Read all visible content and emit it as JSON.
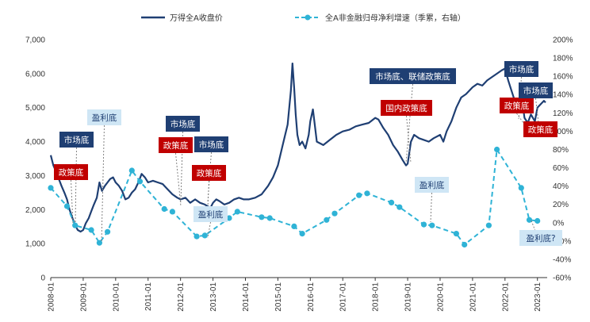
{
  "chart_data": {
    "type": "line",
    "legend": {
      "placement": "top",
      "entries": [
        {
          "label": "万得全A收盘价",
          "style": "solid",
          "color": "#1f3f73"
        },
        {
          "label": "全A非金融归母净利增速（季累，右轴）",
          "style": "dashed-markers",
          "color": "#2fb3d6"
        }
      ]
    },
    "x_tick_labels": [
      "2008-01",
      "2009-01",
      "2010-01",
      "2011-01",
      "2012-01",
      "2013-01",
      "2014-01",
      "2015-01",
      "2016-01",
      "2017-01",
      "2018-01",
      "2019-01",
      "2020-01",
      "2021-01",
      "2022-01",
      "2023-01"
    ],
    "x_range": [
      2008.0,
      2023.3
    ],
    "y_left": {
      "range": [
        0,
        7000
      ],
      "ticks": [
        0,
        1000,
        2000,
        3000,
        4000,
        5000,
        6000,
        7000
      ],
      "tick_labels": [
        "0",
        "1,000",
        "2,000",
        "3,000",
        "4,000",
        "5,000",
        "6,000",
        "7,000"
      ]
    },
    "y_right": {
      "range": [
        -60,
        200
      ],
      "ticks": [
        -60,
        -40,
        -20,
        0,
        20,
        40,
        60,
        80,
        100,
        120,
        140,
        160,
        180,
        200
      ],
      "tick_labels": [
        "-60%",
        "-40%",
        "-20%",
        "0%",
        "20%",
        "40%",
        "60%",
        "80%",
        "100%",
        "120%",
        "140%",
        "160%",
        "180%",
        "200%"
      ]
    },
    "series": [
      {
        "name": "万得全A收盘价",
        "axis": "left",
        "color": "#1f3f73",
        "x": [
          2008.0,
          2008.08,
          2008.17,
          2008.25,
          2008.33,
          2008.42,
          2008.5,
          2008.58,
          2008.67,
          2008.75,
          2008.83,
          2008.92,
          2009.0,
          2009.08,
          2009.17,
          2009.25,
          2009.33,
          2009.42,
          2009.5,
          2009.58,
          2009.67,
          2009.75,
          2009.83,
          2009.92,
          2010.0,
          2010.1,
          2010.2,
          2010.3,
          2010.4,
          2010.5,
          2010.6,
          2010.7,
          2010.8,
          2010.9,
          2011.0,
          2011.15,
          2011.3,
          2011.45,
          2011.6,
          2011.75,
          2011.9,
          2012.0,
          2012.15,
          2012.3,
          2012.45,
          2012.6,
          2012.75,
          2012.92,
          2013.0,
          2013.1,
          2013.2,
          2013.35,
          2013.5,
          2013.65,
          2013.8,
          2013.95,
          2014.1,
          2014.3,
          2014.5,
          2014.7,
          2014.85,
          2015.0,
          2015.15,
          2015.3,
          2015.4,
          2015.45,
          2015.5,
          2015.55,
          2015.6,
          2015.67,
          2015.75,
          2015.85,
          2015.95,
          2016.0,
          2016.08,
          2016.2,
          2016.4,
          2016.6,
          2016.8,
          2017.0,
          2017.2,
          2017.4,
          2017.6,
          2017.8,
          2018.0,
          2018.1,
          2018.25,
          2018.4,
          2018.55,
          2018.7,
          2018.85,
          2018.95,
          2019.0,
          2019.1,
          2019.2,
          2019.35,
          2019.5,
          2019.65,
          2019.8,
          2020.0,
          2020.1,
          2020.2,
          2020.35,
          2020.5,
          2020.65,
          2020.8,
          2021.0,
          2021.15,
          2021.3,
          2021.45,
          2021.6,
          2021.75,
          2021.9,
          2022.0,
          2022.1,
          2022.2,
          2022.3,
          2022.4,
          2022.5,
          2022.6,
          2022.7,
          2022.8,
          2022.92,
          2023.0,
          2023.1,
          2023.2,
          2023.25
        ],
        "y": [
          3600,
          3300,
          3100,
          2900,
          2700,
          2500,
          2300,
          2000,
          1750,
          1550,
          1400,
          1350,
          1400,
          1600,
          1750,
          1950,
          2150,
          2350,
          2800,
          2550,
          2700,
          2800,
          2900,
          2950,
          2800,
          2700,
          2550,
          2300,
          2350,
          2500,
          2600,
          2800,
          3050,
          2950,
          2800,
          2850,
          2800,
          2750,
          2600,
          2450,
          2350,
          2300,
          2350,
          2200,
          2300,
          2200,
          2150,
          2050,
          2200,
          2300,
          2250,
          2150,
          2200,
          2300,
          2350,
          2300,
          2300,
          2350,
          2450,
          2700,
          2950,
          3300,
          3900,
          4500,
          5500,
          6300,
          5600,
          4800,
          4200,
          3900,
          4000,
          3800,
          4200,
          4600,
          4950,
          4000,
          3900,
          4050,
          4200,
          4300,
          4350,
          4450,
          4500,
          4550,
          4700,
          4650,
          4400,
          4200,
          3900,
          3700,
          3450,
          3300,
          3350,
          4000,
          4200,
          4100,
          4050,
          4000,
          4100,
          4200,
          4000,
          4300,
          4600,
          5000,
          5300,
          5400,
          5600,
          5700,
          5650,
          5800,
          5900,
          6000,
          6100,
          6150,
          5800,
          5500,
          5200,
          4900,
          5400,
          4700,
          4550,
          4800,
          4600,
          5000,
          5100,
          5200,
          5150
        ]
      },
      {
        "name": "全A非金融归母净利增速（季累，右轴）",
        "axis": "right",
        "color": "#2fb3d6",
        "x": [
          2008.0,
          2008.5,
          2008.75,
          2009.25,
          2009.5,
          2009.75,
          2010.5,
          2010.75,
          2011.5,
          2011.75,
          2012.5,
          2012.75,
          2013.5,
          2013.75,
          2014.5,
          2014.75,
          2015.5,
          2015.75,
          2016.5,
          2016.75,
          2017.5,
          2017.75,
          2018.5,
          2018.75,
          2019.5,
          2019.75,
          2020.5,
          2020.75,
          2021.5,
          2021.75,
          2022.5,
          2022.75,
          2023.0
        ],
        "y": [
          38,
          18,
          -3,
          -8,
          -22,
          -10,
          57,
          45,
          15,
          12,
          -15,
          -14,
          5,
          12,
          6,
          5,
          -4,
          -12,
          3,
          10,
          30,
          32,
          22,
          17,
          -2,
          -3,
          -12,
          -24,
          -3,
          80,
          38,
          3,
          2
        ]
      }
    ],
    "annotations": [
      {
        "text": "市场底",
        "style": "navy"
      },
      {
        "text": "政策底",
        "style": "red"
      },
      {
        "text": "盈利底",
        "style": "light"
      },
      {
        "text": "市场底",
        "style": "navy"
      },
      {
        "text": "政策底",
        "style": "red"
      },
      {
        "text": "市场底",
        "style": "navy"
      },
      {
        "text": "政策底",
        "style": "red"
      },
      {
        "text": "盈利底",
        "style": "light"
      },
      {
        "text": "市场底、联储政策底",
        "style": "navy"
      },
      {
        "text": "国内政策底",
        "style": "red"
      },
      {
        "text": "盈利底",
        "style": "light"
      },
      {
        "text": "市场底",
        "style": "navy"
      },
      {
        "text": "政策底",
        "style": "red"
      },
      {
        "text": "市场底",
        "style": "navy"
      },
      {
        "text": "政策底",
        "style": "red"
      },
      {
        "text": "盈利底?",
        "style": "light"
      }
    ],
    "colors": {
      "navy_box": "#1f3f73",
      "red_box": "#c00000",
      "light_box": "#cfe6f5",
      "light_text": "#1f3f73",
      "axis_text": "#333333"
    }
  }
}
